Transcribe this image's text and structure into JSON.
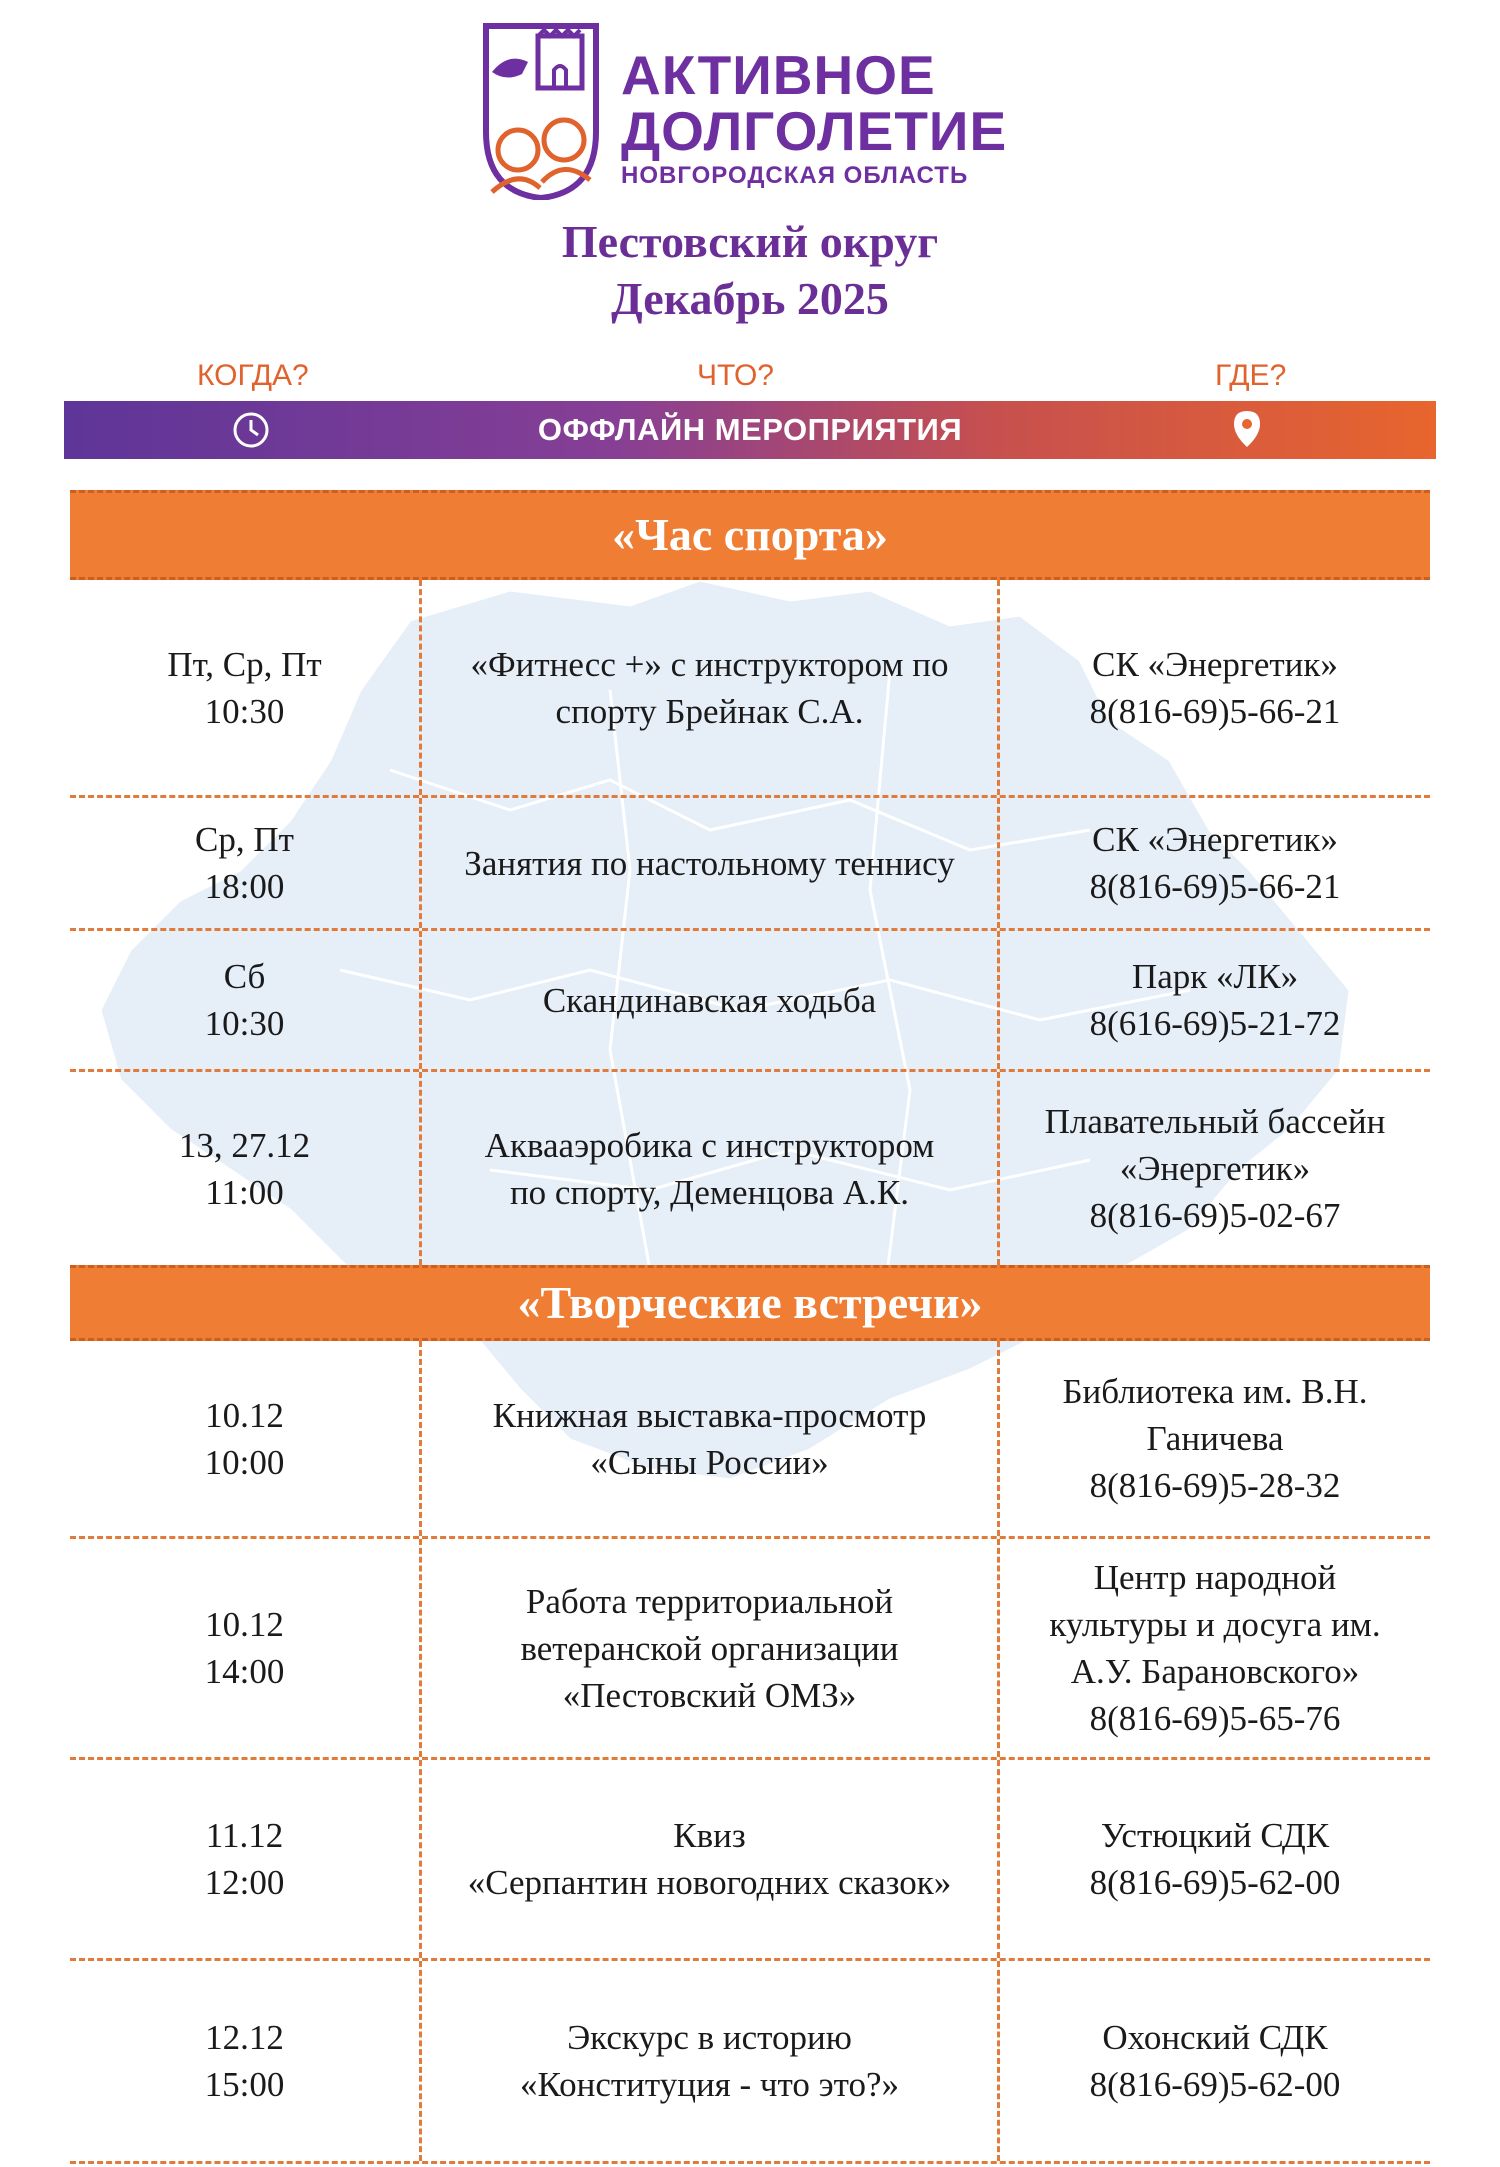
{
  "logo": {
    "line1": "АКТИВНОЕ",
    "line2": "ДОЛГОЛЕТИЕ",
    "line3": "НОВГОРОДСКАЯ ОБЛАСТЬ"
  },
  "title": {
    "line1": "Пестовский округ",
    "line2": "Декабрь 2025"
  },
  "questions": {
    "when": "КОГДА?",
    "what": "ЧТО?",
    "where": "ГДЕ?"
  },
  "banner": {
    "label": "ОФФЛАЙН МЕРОПРИЯТИЯ",
    "left_icon": "clock-icon",
    "right_icon": "location-pin-icon"
  },
  "colors": {
    "purple": "#6a2e96",
    "orange": "#ef7d33",
    "gradient_start": "#5e3598",
    "gradient_end": "#e8652d"
  },
  "sections": [
    {
      "title": "«Час спорта»",
      "rows": [
        {
          "when": "Пт, Ср, Пт\n10:30",
          "what": "«Фитнесс +» с инструктором по\nспорту Брейнак С.А.",
          "where": "СК «Энергетик»\n8(816-69)5-66-21"
        },
        {
          "when": "Ср, Пт\n18:00",
          "what": "Занятия по настольному теннису",
          "where": "СК «Энергетик»\n8(816-69)5-66-21"
        },
        {
          "when": "Сб\n10:30",
          "what": "Скандинавская ходьба",
          "where": "Парк «ЛК»\n8(616-69)5-21-72"
        },
        {
          "when": "13, 27.12\n11:00",
          "what": "Аквааэробика с инструктором\nпо спорту, Деменцова А.К.",
          "where": "Плавательный бассейн\n«Энергетик»\n8(816-69)5-02-67"
        }
      ]
    },
    {
      "title": "«Творческие встречи»",
      "rows": [
        {
          "when": "10.12\n10:00",
          "what": "Книжная выставка-просмотр\n«Сыны России»",
          "where": "Библиотека им. В.Н.\nГаничева\n8(816-69)5-28-32"
        },
        {
          "when": "10.12\n14:00",
          "what": "Работа территориальной\nветеранской организации\n«Пестовский ОМЗ»",
          "where": "Центр народной\nкультуры и досуга им.\nА.У. Барановского»\n8(816-69)5-65-76"
        },
        {
          "when": "11.12\n12:00",
          "what": "Квиз\n«Серпантин новогодних сказок»",
          "where": "Устюцкий СДК\n8(816-69)5-62-00"
        },
        {
          "when": "12.12\n15:00",
          "what": "Экскурс в историю\n«Конституция - что это?»",
          "where": "Охонский СДК\n8(816-69)5-62-00"
        }
      ]
    }
  ]
}
